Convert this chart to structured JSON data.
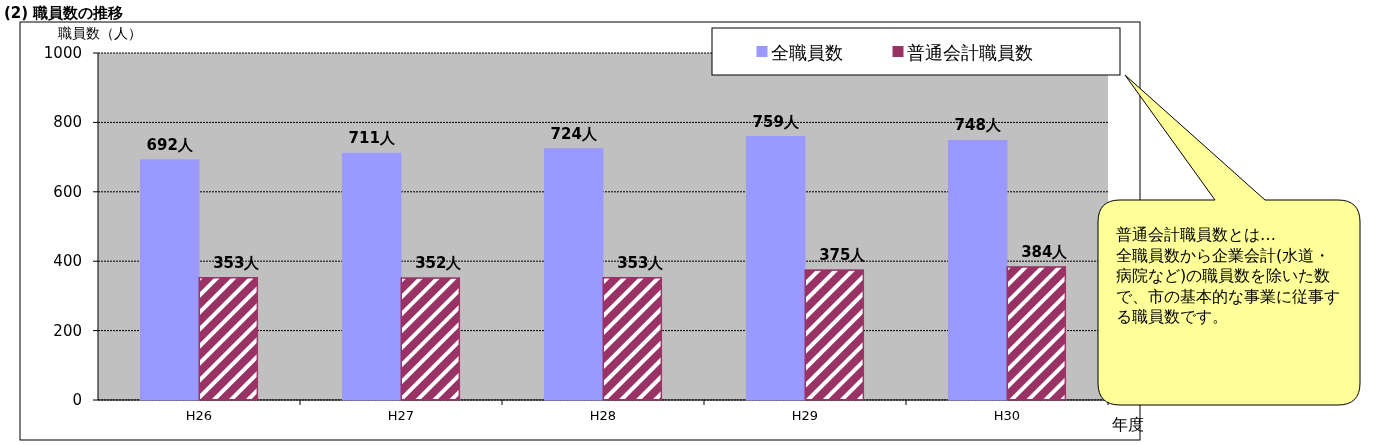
{
  "chart_data": {
    "type": "bar",
    "title": "(2) 職員数の推移",
    "ylabel": "職員数（人）",
    "xlabel": "年度",
    "categories": [
      "H26",
      "H27",
      "H28",
      "H29",
      "H30"
    ],
    "series": [
      {
        "name": "全職員数",
        "color": "#9999ff",
        "values": [
          692,
          711,
          724,
          759,
          748
        ],
        "value_labels": [
          "692人",
          "711人",
          "724人",
          "759人",
          "748人"
        ]
      },
      {
        "name": "普通会計職員数",
        "color": "#993366",
        "values": [
          353,
          352,
          353,
          375,
          384
        ],
        "value_labels": [
          "353人",
          "352人",
          "353人",
          "375人",
          "384人"
        ]
      }
    ],
    "ylim": [
      0,
      1000
    ],
    "yticks": [
      0,
      200,
      400,
      600,
      800,
      1000
    ],
    "grid": "y",
    "legend": "top right",
    "annotations": [
      "普通会計職員数とは…\n全職員数から企業会計(水道・病院など)の職員数を除いた数で、市の基本的な事業に従事する職員数です。"
    ]
  }
}
